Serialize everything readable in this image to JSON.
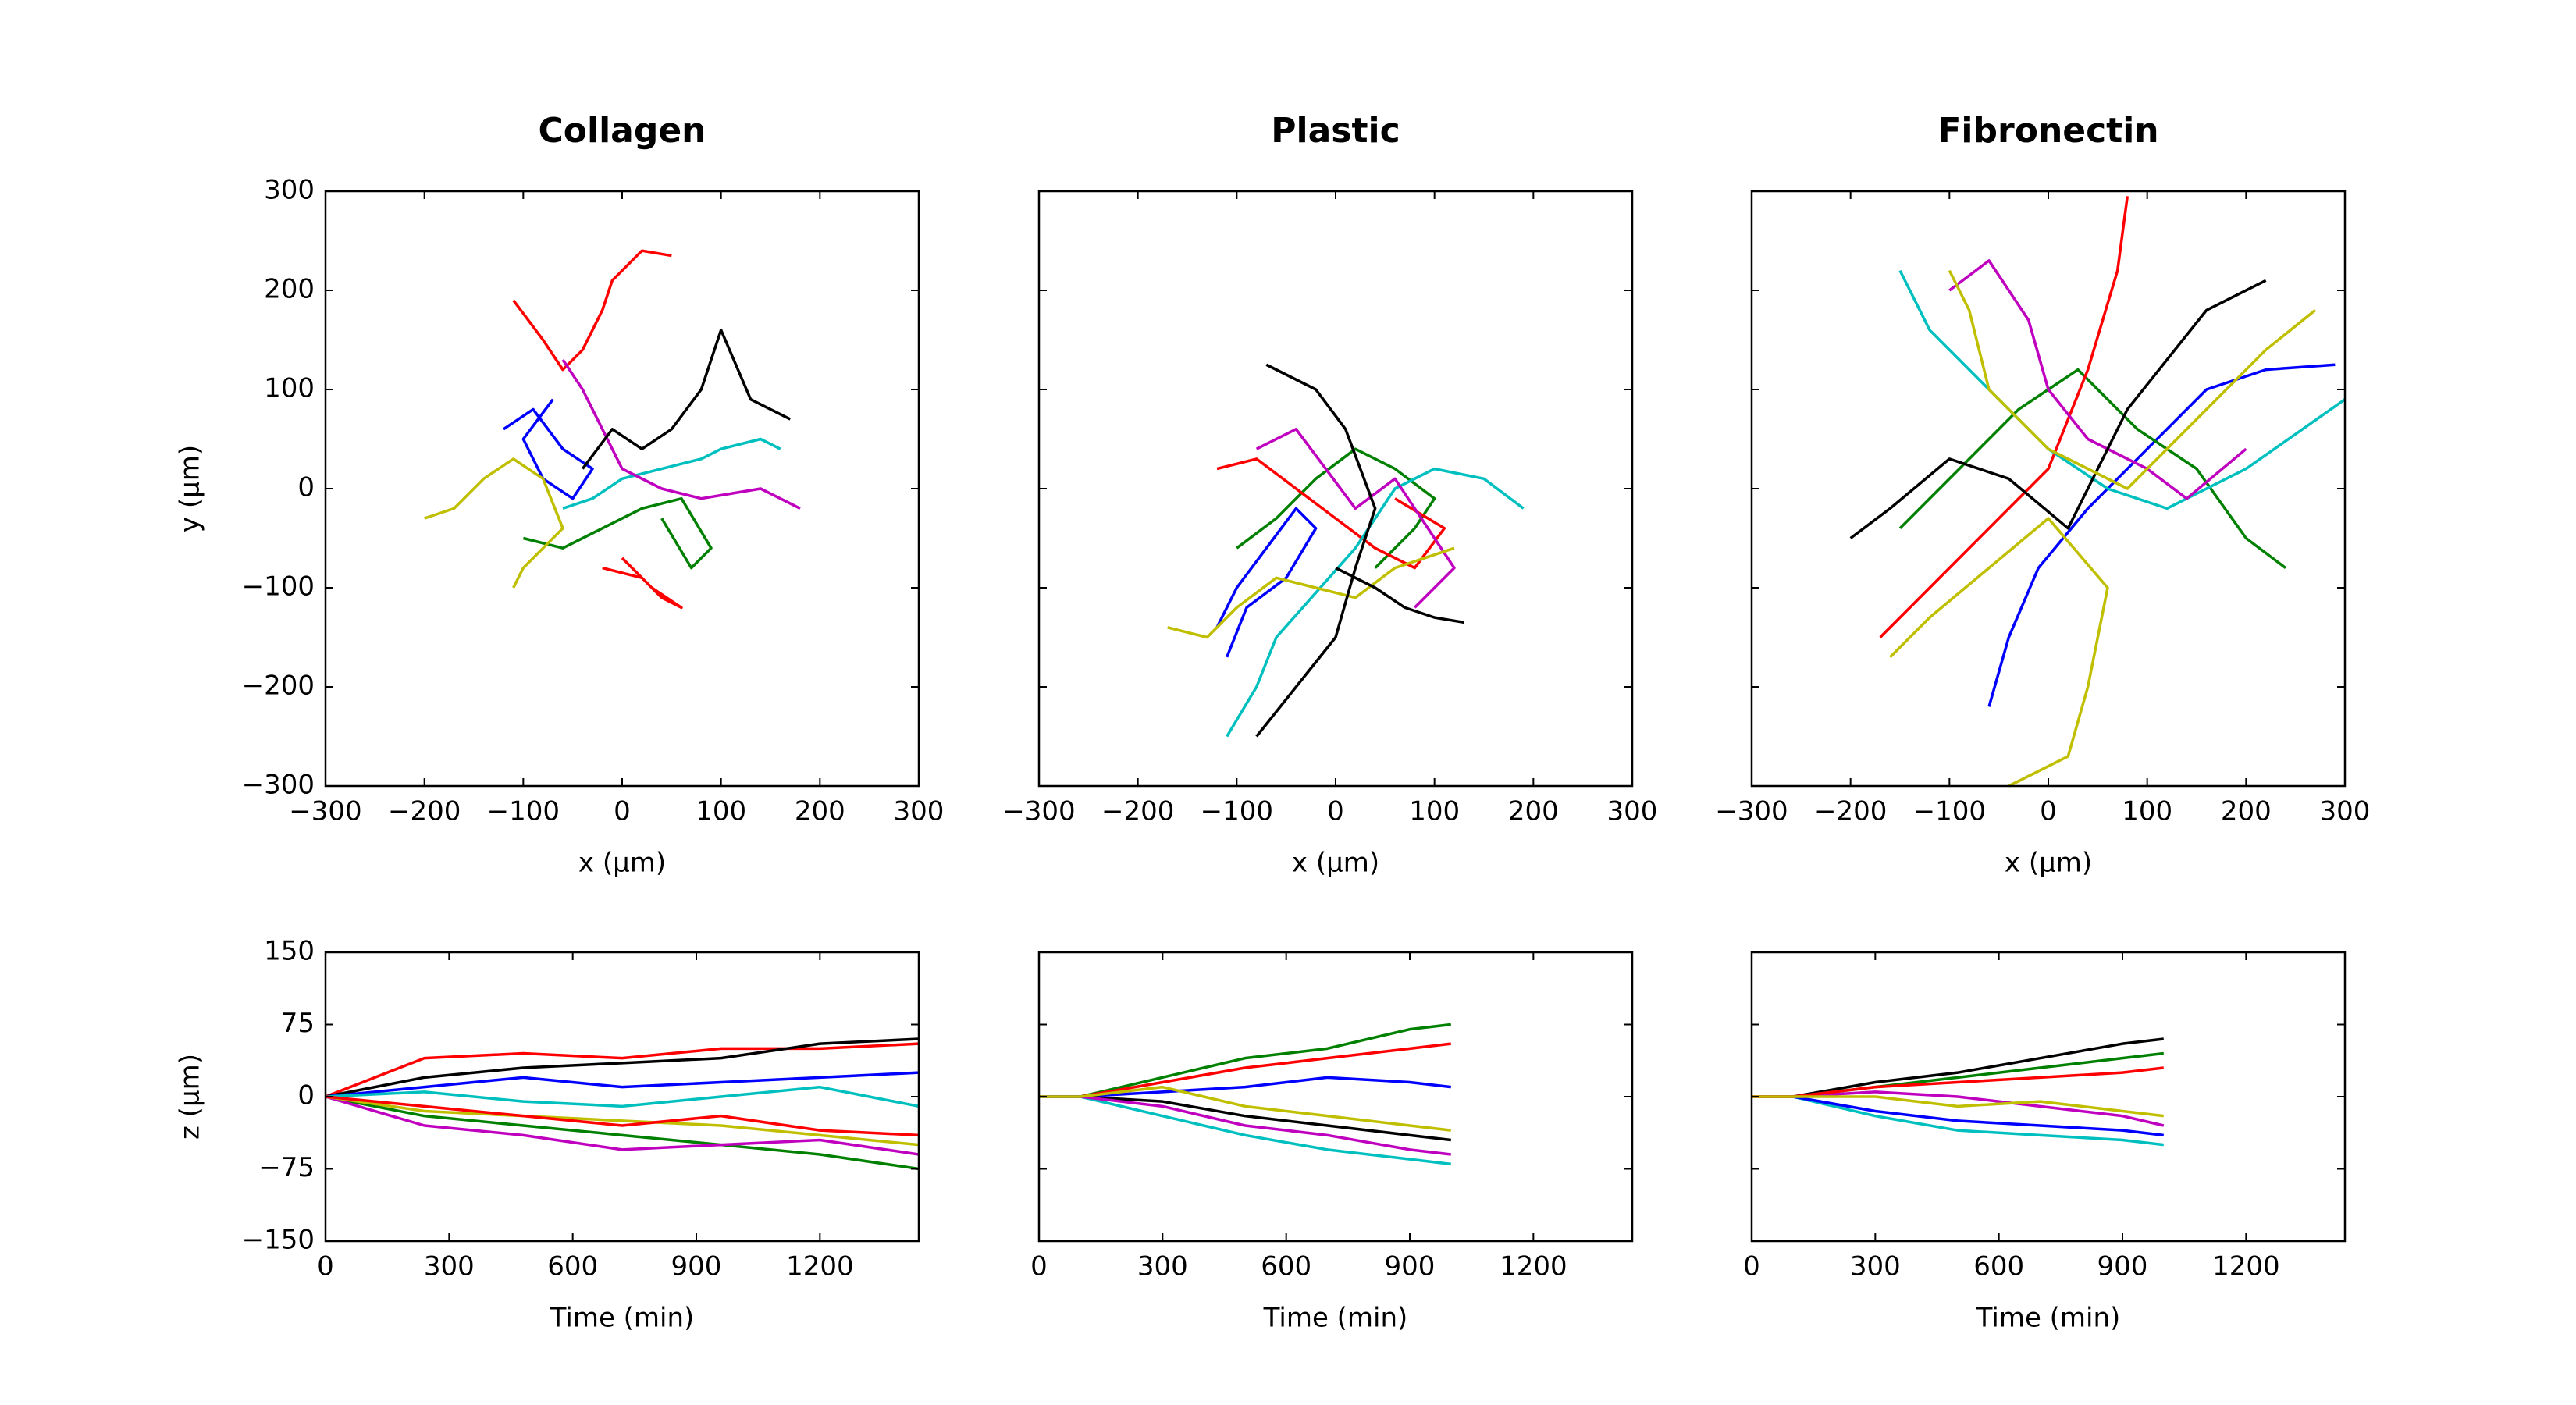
{
  "chart_data": [
    {
      "type": "line",
      "title": "Collagen",
      "xlabel": "x (µm)",
      "ylabel": "y (µm)",
      "show_ytick_labels": true,
      "xlim": [
        -300,
        300
      ],
      "ylim": [
        -300,
        300
      ],
      "xticks": [
        {
          "value": -300,
          "label": "−300"
        },
        {
          "value": -200,
          "label": "−200"
        },
        {
          "value": -100,
          "label": "−100"
        },
        0,
        100,
        200,
        300
      ],
      "yticks": [
        {
          "value": -300,
          "label": "−300"
        },
        {
          "value": -200,
          "label": "−200"
        },
        {
          "value": -100,
          "label": "−100"
        },
        0,
        100,
        200,
        300
      ],
      "series": [
        {
          "color": "#0000ff",
          "x": [
            -120,
            -90,
            -60,
            -30,
            -50,
            -80,
            -100,
            -70
          ],
          "values": [
            60,
            80,
            40,
            20,
            -10,
            10,
            50,
            90
          ]
        },
        {
          "color": "#008000",
          "x": [
            -100,
            -60,
            -20,
            20,
            60,
            90,
            70,
            40
          ],
          "values": [
            -50,
            -60,
            -40,
            -20,
            -10,
            -60,
            -80,
            -30
          ]
        },
        {
          "color": "#ff0000",
          "x": [
            -110,
            -80,
            -60,
            -40,
            -20,
            -10,
            20,
            50
          ],
          "values": [
            190,
            150,
            120,
            140,
            180,
            210,
            240,
            235
          ]
        },
        {
          "color": "#00bfbf",
          "x": [
            -60,
            -30,
            0,
            40,
            80,
            100,
            140,
            160
          ],
          "values": [
            -20,
            -10,
            10,
            20,
            30,
            40,
            50,
            40
          ]
        },
        {
          "color": "#bf00bf",
          "x": [
            -60,
            -40,
            -20,
            0,
            40,
            80,
            140,
            180
          ],
          "values": [
            130,
            100,
            60,
            20,
            0,
            -10,
            0,
            -20
          ]
        },
        {
          "color": "#bfbf00",
          "x": [
            -200,
            -170,
            -140,
            -110,
            -80,
            -60,
            -100,
            -110
          ],
          "values": [
            -30,
            -20,
            10,
            30,
            10,
            -40,
            -80,
            -100
          ]
        },
        {
          "color": "#000000",
          "x": [
            -40,
            -10,
            20,
            50,
            80,
            100,
            130,
            170
          ],
          "values": [
            20,
            60,
            40,
            60,
            100,
            160,
            90,
            70
          ]
        },
        {
          "color": "#ff0000",
          "x": [
            -20,
            20,
            40,
            60,
            30,
            0
          ],
          "values": [
            -80,
            -90,
            -110,
            -120,
            -100,
            -70
          ]
        }
      ]
    },
    {
      "type": "line",
      "title": "Plastic",
      "xlabel": "x (µm)",
      "show_ytick_labels": false,
      "xlim": [
        -300,
        300
      ],
      "ylim": [
        -300,
        300
      ],
      "xticks": [
        {
          "value": -300,
          "label": "−300"
        },
        {
          "value": -200,
          "label": "−200"
        },
        {
          "value": -100,
          "label": "−100"
        },
        0,
        100,
        200,
        300
      ],
      "yticks": [
        -300,
        -200,
        -100,
        0,
        100,
        200,
        300
      ],
      "series": [
        {
          "color": "#0000ff",
          "x": [
            -120,
            -100,
            -70,
            -40,
            -20,
            -50,
            -90,
            -110
          ],
          "values": [
            -140,
            -100,
            -60,
            -20,
            -40,
            -90,
            -120,
            -170
          ]
        },
        {
          "color": "#008000",
          "x": [
            -100,
            -60,
            -20,
            20,
            60,
            100,
            80,
            40
          ],
          "values": [
            -60,
            -30,
            10,
            40,
            20,
            -10,
            -40,
            -80
          ]
        },
        {
          "color": "#ff0000",
          "x": [
            -120,
            -80,
            -40,
            0,
            40,
            80,
            110,
            60
          ],
          "values": [
            20,
            30,
            0,
            -30,
            -60,
            -80,
            -40,
            -10
          ]
        },
        {
          "color": "#00bfbf",
          "x": [
            -110,
            -80,
            -60,
            20,
            60,
            100,
            150,
            190
          ],
          "values": [
            -250,
            -200,
            -150,
            -60,
            0,
            20,
            10,
            -20
          ]
        },
        {
          "color": "#bf00bf",
          "x": [
            -80,
            -40,
            -10,
            20,
            60,
            100,
            120,
            80
          ],
          "values": [
            40,
            60,
            20,
            -20,
            10,
            -50,
            -80,
            -120
          ]
        },
        {
          "color": "#bfbf00",
          "x": [
            -170,
            -130,
            -100,
            -60,
            -20,
            20,
            60,
            120
          ],
          "values": [
            -140,
            -150,
            -120,
            -90,
            -100,
            -110,
            -80,
            -60
          ]
        },
        {
          "color": "#000000",
          "x": [
            -80,
            -40,
            0,
            20,
            40,
            10,
            -20,
            -70
          ],
          "values": [
            -250,
            -200,
            -150,
            -80,
            -20,
            60,
            100,
            125
          ]
        },
        {
          "color": "#000000",
          "x": [
            0,
            40,
            70,
            100,
            130
          ],
          "values": [
            -80,
            -100,
            -120,
            -130,
            -135
          ]
        }
      ]
    },
    {
      "type": "line",
      "title": "Fibronectin",
      "xlabel": "x (µm)",
      "show_ytick_labels": false,
      "xlim": [
        -300,
        300
      ],
      "ylim": [
        -300,
        300
      ],
      "xticks": [
        {
          "value": -300,
          "label": "−300"
        },
        {
          "value": -200,
          "label": "−200"
        },
        {
          "value": -100,
          "label": "−100"
        },
        0,
        100,
        200,
        300
      ],
      "yticks": [
        -300,
        -200,
        -100,
        0,
        100,
        200,
        300
      ],
      "series": [
        {
          "color": "#0000ff",
          "x": [
            -60,
            -40,
            -10,
            40,
            100,
            160,
            220,
            290
          ],
          "values": [
            -220,
            -150,
            -80,
            -20,
            40,
            100,
            120,
            125
          ]
        },
        {
          "color": "#008000",
          "x": [
            -150,
            -90,
            -30,
            30,
            90,
            150,
            200,
            240
          ],
          "values": [
            -40,
            20,
            80,
            120,
            60,
            20,
            -50,
            -80
          ]
        },
        {
          "color": "#ff0000",
          "x": [
            -170,
            -120,
            -60,
            0,
            40,
            70,
            80
          ],
          "values": [
            -150,
            -100,
            -40,
            20,
            120,
            220,
            295
          ]
        },
        {
          "color": "#00bfbf",
          "x": [
            -150,
            -120,
            -60,
            0,
            60,
            120,
            200,
            300
          ],
          "values": [
            220,
            160,
            100,
            40,
            0,
            -20,
            20,
            90
          ]
        },
        {
          "color": "#bf00bf",
          "x": [
            -100,
            -60,
            -20,
            0,
            40,
            100,
            140,
            200
          ],
          "values": [
            200,
            230,
            170,
            100,
            50,
            20,
            -10,
            40
          ]
        },
        {
          "color": "#bfbf00",
          "x": [
            -160,
            -120,
            -60,
            0,
            60,
            40,
            20,
            -40
          ],
          "values": [
            -170,
            -130,
            -80,
            -30,
            -100,
            -200,
            -270,
            -300
          ]
        },
        {
          "color": "#000000",
          "x": [
            -200,
            -160,
            -100,
            -40,
            20,
            80,
            160,
            220
          ],
          "values": [
            -50,
            -20,
            30,
            10,
            -40,
            80,
            180,
            210
          ]
        },
        {
          "color": "#bfbf00",
          "x": [
            -100,
            -80,
            -60,
            0,
            80,
            160,
            220,
            270
          ],
          "values": [
            220,
            180,
            100,
            40,
            0,
            80,
            140,
            180
          ]
        }
      ]
    },
    {
      "type": "line",
      "xlabel": "Time (min)",
      "ylabel": "z (µm)",
      "show_ytick_labels": true,
      "xlim": [
        0,
        1440
      ],
      "ylim": [
        -150,
        150
      ],
      "xticks": [
        0,
        300,
        600,
        900,
        1200
      ],
      "yticks": [
        {
          "value": -150,
          "label": "−150"
        },
        {
          "value": -75,
          "label": "−75"
        },
        0,
        75,
        150
      ],
      "x": [
        0,
        240,
        480,
        720,
        960,
        1200,
        1440
      ],
      "series": [
        {
          "color": "#ff0000",
          "values": [
            0,
            40,
            45,
            40,
            50,
            50,
            55
          ]
        },
        {
          "color": "#000000",
          "values": [
            0,
            20,
            30,
            35,
            40,
            55,
            60
          ]
        },
        {
          "color": "#0000ff",
          "values": [
            0,
            10,
            20,
            10,
            15,
            20,
            25
          ]
        },
        {
          "color": "#008000",
          "values": [
            0,
            -20,
            -30,
            -40,
            -50,
            -60,
            -75
          ]
        },
        {
          "color": "#bf00bf",
          "values": [
            0,
            -30,
            -40,
            -55,
            -50,
            -45,
            -60
          ]
        },
        {
          "color": "#bfbf00",
          "values": [
            0,
            -15,
            -20,
            -25,
            -30,
            -40,
            -50
          ]
        },
        {
          "color": "#00bfbf",
          "values": [
            0,
            5,
            -5,
            -10,
            0,
            10,
            -10
          ]
        },
        {
          "color": "#ff0000",
          "values": [
            0,
            -10,
            -20,
            -30,
            -20,
            -35,
            -40
          ]
        }
      ]
    },
    {
      "type": "line",
      "xlabel": "Time (min)",
      "show_ytick_labels": false,
      "xlim": [
        0,
        1440
      ],
      "ylim": [
        -150,
        150
      ],
      "xticks": [
        0,
        300,
        600,
        900,
        1200
      ],
      "yticks": [
        -150,
        -75,
        0,
        75,
        150
      ],
      "x": [
        0,
        100,
        300,
        500,
        700,
        900,
        1000
      ],
      "series": [
        {
          "color": "#008000",
          "values": [
            0,
            0,
            20,
            40,
            50,
            70,
            75
          ]
        },
        {
          "color": "#ff0000",
          "values": [
            0,
            0,
            15,
            30,
            40,
            50,
            55
          ]
        },
        {
          "color": "#0000ff",
          "values": [
            0,
            0,
            5,
            10,
            20,
            15,
            10
          ]
        },
        {
          "color": "#000000",
          "values": [
            0,
            0,
            -5,
            -20,
            -30,
            -40,
            -45
          ]
        },
        {
          "color": "#00bfbf",
          "values": [
            0,
            0,
            -20,
            -40,
            -55,
            -65,
            -70
          ]
        },
        {
          "color": "#bf00bf",
          "values": [
            0,
            0,
            -10,
            -30,
            -40,
            -55,
            -60
          ]
        },
        {
          "color": "#bfbf00",
          "values": [
            0,
            0,
            10,
            -10,
            -20,
            -30,
            -35
          ]
        }
      ]
    },
    {
      "type": "line",
      "xlabel": "Time (min)",
      "show_ytick_labels": false,
      "xlim": [
        0,
        1440
      ],
      "ylim": [
        -150,
        150
      ],
      "xticks": [
        0,
        300,
        600,
        900,
        1200
      ],
      "yticks": [
        -150,
        -75,
        0,
        75,
        150
      ],
      "x": [
        0,
        100,
        300,
        500,
        700,
        900,
        1000
      ],
      "series": [
        {
          "color": "#000000",
          "values": [
            0,
            0,
            15,
            25,
            40,
            55,
            60
          ]
        },
        {
          "color": "#008000",
          "values": [
            0,
            0,
            10,
            20,
            30,
            40,
            45
          ]
        },
        {
          "color": "#00bfbf",
          "values": [
            0,
            0,
            -20,
            -35,
            -40,
            -45,
            -50
          ]
        },
        {
          "color": "#0000ff",
          "values": [
            0,
            0,
            -15,
            -25,
            -30,
            -35,
            -40
          ]
        },
        {
          "color": "#bf00bf",
          "values": [
            0,
            0,
            5,
            0,
            -10,
            -20,
            -30
          ]
        },
        {
          "color": "#ff0000",
          "values": [
            0,
            0,
            10,
            15,
            20,
            25,
            30
          ]
        },
        {
          "color": "#bfbf00",
          "values": [
            0,
            0,
            0,
            -10,
            -5,
            -15,
            -20
          ]
        }
      ]
    }
  ]
}
